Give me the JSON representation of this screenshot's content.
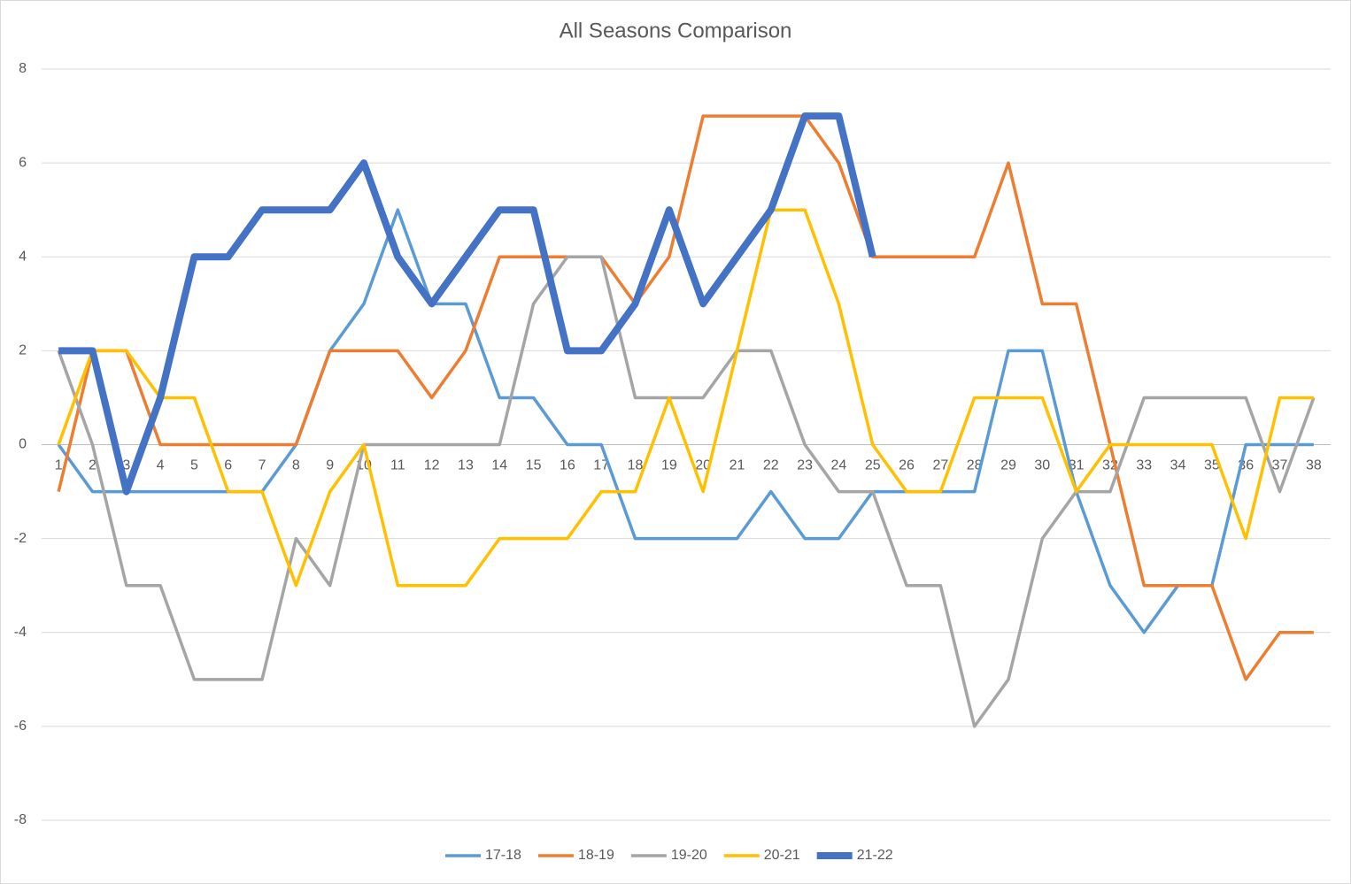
{
  "chart_data": {
    "type": "line",
    "title": "All Seasons Comparison",
    "categories": [
      1,
      2,
      3,
      4,
      5,
      6,
      7,
      8,
      9,
      10,
      11,
      12,
      13,
      14,
      15,
      16,
      17,
      18,
      19,
      20,
      21,
      22,
      23,
      24,
      25,
      26,
      27,
      28,
      29,
      30,
      31,
      32,
      33,
      34,
      35,
      36,
      37,
      38
    ],
    "series": [
      {
        "name": "17-18",
        "color": "#5b9bd5",
        "line_width": 3.5,
        "values": [
          0,
          -1,
          -1,
          -1,
          -1,
          -1,
          -1,
          0,
          2,
          3,
          5,
          3,
          3,
          1,
          1,
          0,
          0,
          -2,
          -2,
          -2,
          -2,
          -1,
          -2,
          -2,
          -1,
          -1,
          -1,
          -1,
          2,
          2,
          -1,
          -3,
          -4,
          -3,
          -3,
          0,
          0,
          0
        ]
      },
      {
        "name": "18-19",
        "color": "#ed7d31",
        "line_width": 3.5,
        "values": [
          -1,
          2,
          2,
          0,
          0,
          0,
          0,
          0,
          2,
          2,
          2,
          1,
          2,
          4,
          4,
          4,
          4,
          3,
          4,
          7,
          7,
          7,
          7,
          6,
          4,
          4,
          4,
          4,
          6,
          3,
          3,
          0,
          -3,
          -3,
          -3,
          -5,
          -4,
          -4
        ]
      },
      {
        "name": "19-20",
        "color": "#a5a5a5",
        "line_width": 3.5,
        "values": [
          2,
          0,
          -3,
          -3,
          -5,
          -5,
          -5,
          -2,
          -3,
          0,
          0,
          0,
          0,
          0,
          3,
          4,
          4,
          1,
          1,
          1,
          2,
          2,
          0,
          -1,
          -1,
          -3,
          -3,
          -6,
          -5,
          -2,
          -1,
          -1,
          1,
          1,
          1,
          1,
          -1,
          1
        ]
      },
      {
        "name": "20-21",
        "color": "#ffc000",
        "line_width": 3.5,
        "values": [
          0,
          2,
          2,
          1,
          1,
          -1,
          -1,
          -3,
          -1,
          0,
          -3,
          -3,
          -3,
          -2,
          -2,
          -2,
          -1,
          -1,
          1,
          -1,
          2,
          5,
          5,
          3,
          0,
          -1,
          -1,
          1,
          1,
          1,
          -1,
          0,
          0,
          0,
          0,
          -2,
          1,
          1
        ]
      },
      {
        "name": "21-22",
        "color": "#4472c4",
        "line_width": 8,
        "values": [
          2,
          2,
          -1,
          1,
          4,
          4,
          5,
          5,
          5,
          6,
          4,
          3,
          4,
          5,
          5,
          2,
          2,
          3,
          5,
          3,
          4,
          5,
          7,
          7,
          4,
          null,
          null,
          null,
          null,
          null,
          null,
          null,
          null,
          null,
          null,
          null,
          null,
          null
        ]
      }
    ],
    "ylim": [
      -8,
      8
    ],
    "yticks": [
      -8,
      -6,
      -4,
      -2,
      0,
      2,
      4,
      6,
      8
    ],
    "grid": true,
    "legend": "bottom"
  }
}
